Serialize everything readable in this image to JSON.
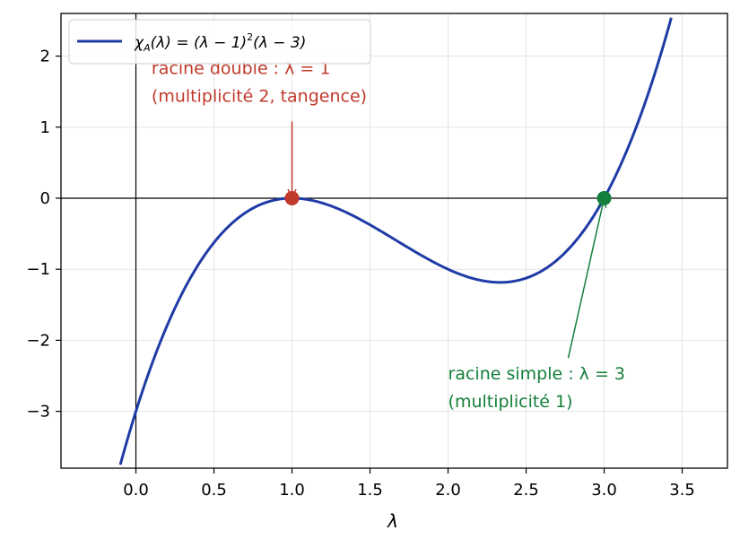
{
  "chart_data": {
    "type": "line",
    "title": "",
    "xlabel": "λ",
    "ylabel": "",
    "xlim": [
      -0.48,
      3.79
    ],
    "ylim": [
      -3.8,
      2.6
    ],
    "grid": true,
    "legend_position": "top-left",
    "xticks": [
      0.0,
      0.5,
      1.0,
      1.5,
      2.0,
      2.5,
      3.0,
      3.5
    ],
    "xtick_labels": [
      "0.0",
      "0.5",
      "1.0",
      "1.5",
      "2.0",
      "2.5",
      "3.0",
      "3.5"
    ],
    "yticks": [
      -3,
      -2,
      -1,
      0,
      1,
      2
    ],
    "ytick_labels": [
      "−3",
      "−2",
      "−1",
      "0",
      "1",
      "2"
    ],
    "series": [
      {
        "name": "χA(λ) = (λ − 1)²(λ − 3)",
        "legend_main": "χ",
        "legend_sub": "A",
        "legend_rest": "(λ) = (λ − 1)",
        "legend_sup": "2",
        "legend_end": "(λ − 3)",
        "color": "#1f3ba6",
        "expression": "(x-1)^2*(x-3)",
        "x": [
          -0.1,
          0.0,
          0.25,
          0.5,
          0.75,
          1.0,
          1.25,
          1.5,
          1.75,
          2.0,
          2.25,
          2.333,
          2.5,
          2.75,
          3.0,
          3.25,
          3.43
        ],
        "y": [
          -3.751,
          -3.0,
          -1.547,
          -0.625,
          -0.141,
          0.0,
          -0.109,
          -0.375,
          -0.703,
          -1.0,
          -1.172,
          -1.185,
          -1.125,
          -0.766,
          0.0,
          1.266,
          2.6
        ]
      }
    ],
    "points": [
      {
        "name": "racine double",
        "x": 1,
        "y": 0,
        "color": "#c0392b"
      },
      {
        "name": "racine simple",
        "x": 3,
        "y": 0,
        "color": "#137f3a"
      }
    ],
    "annotations": [
      {
        "line1": "racine double : λ = 1",
        "line2": "(multiplicité 2, tangence)",
        "text_x": 0.1,
        "text_y": 1.75,
        "arrow_from": [
          1.0,
          1.08
        ],
        "arrow_to": [
          1.0,
          0.0
        ],
        "color": "#c0392b"
      },
      {
        "line1": "racine simple : λ = 3",
        "line2": "(multiplicité 1)",
        "text_x": 2.0,
        "text_y": -2.55,
        "arrow_from": [
          2.77,
          -2.25
        ],
        "arrow_to": [
          3.0,
          0.0
        ],
        "color": "#137f3a"
      }
    ],
    "reference_lines": {
      "x": 0,
      "y": 0,
      "color": "#000000"
    }
  }
}
